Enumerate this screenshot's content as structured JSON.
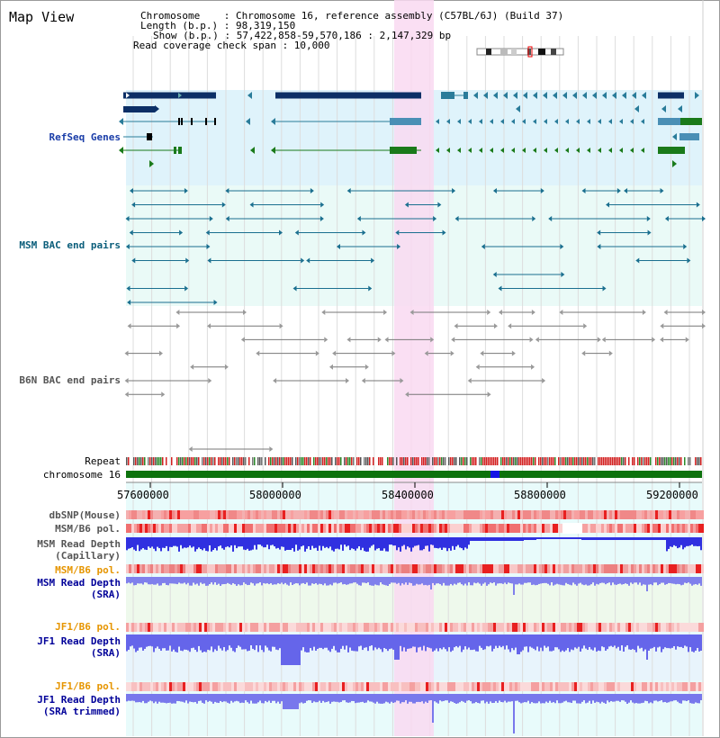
{
  "view": {
    "title": "Map View",
    "header_lines": [
      "Chromosome    : Chromosome 16, reference assembly (C57BL/6J) (Build 37)",
      "Length (b.p.) : 98,319,150",
      "Show (b.p.) : 57,422,858-59,570,186 : 2,147,329 bp",
      "Read coverage check span : 10,000"
    ]
  },
  "tracks": {
    "refseq": "RefSeq Genes",
    "msm_bac": "MSM BAC end pairs",
    "b6n_bac": "B6N BAC end pairs",
    "repeat": "Repeat",
    "chromosome": "chromosome 16",
    "dbsnp": "dbSNP(Mouse)",
    "msm_b6_pol_1": "MSM/B6 pol.",
    "msm_read_depth_cap_1": "MSM Read Depth",
    "msm_read_depth_cap_2": "(Capillary)",
    "msm_b6_pol_2": "MSM/B6 pol.",
    "msm_read_depth_sra_1": "MSM Read Depth",
    "msm_read_depth_sra_2": "(SRA)",
    "jf1_b6_pol_1": "JF1/B6 pol.",
    "jf1_read_depth_sra_1": "JF1 Read Depth",
    "jf1_read_depth_sra_2": "(SRA)",
    "jf1_b6_pol_2": "JF1/B6 pol.",
    "jf1_read_depth_trim_1": "JF1 Read Depth",
    "jf1_read_depth_trim_2": "(SRA trimmed)"
  },
  "ruler": {
    "ticks": [
      "57600000",
      "58000000",
      "58400000",
      "58800000",
      "59200000"
    ]
  },
  "colors": {
    "refseq_bg": "#dff3fb",
    "msm_bg": "#eafaf7",
    "highlight": "#f9d9f1",
    "gene_navy": "#0c2f66",
    "gene_teal": "#2a7c9a",
    "gene_green": "#1a7a1a",
    "msm_pair": "#1a6f8f",
    "b6n_pair": "#777777",
    "chrom_green": "#0d720d",
    "chrom_blue": "#1414e6",
    "depth_blue": "#3030e0",
    "msm_label": "#000099",
    "orange_label": "#e69500",
    "gray_label": "#555555"
  }
}
